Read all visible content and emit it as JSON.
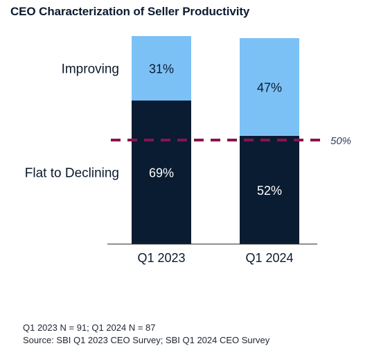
{
  "chart_data": {
    "type": "bar",
    "stacked": true,
    "title": "CEO Characterization of Seller Productivity",
    "categories": [
      "Q1 2023",
      "Q1 2024"
    ],
    "series": [
      {
        "name": "Flat to Declining",
        "values": [
          69,
          52
        ],
        "labels": [
          "69%",
          "52%"
        ],
        "color": "#0a1c31"
      },
      {
        "name": "Improving",
        "values": [
          31,
          47
        ],
        "labels": [
          "31%",
          "47%"
        ],
        "color": "#7cc1f6"
      }
    ],
    "ylim": [
      0,
      100
    ],
    "reference_line": {
      "value": 50,
      "label": "50%",
      "style": "dashed",
      "color": "#8b1252"
    },
    "grid": false,
    "legend": "left, inline series labels"
  },
  "footnotes": [
    "Q1 2023 N = 91; Q1 2024 N = 87",
    "Source: SBI Q1 2023 CEO Survey; SBI Q1 2024 CEO Survey"
  ]
}
